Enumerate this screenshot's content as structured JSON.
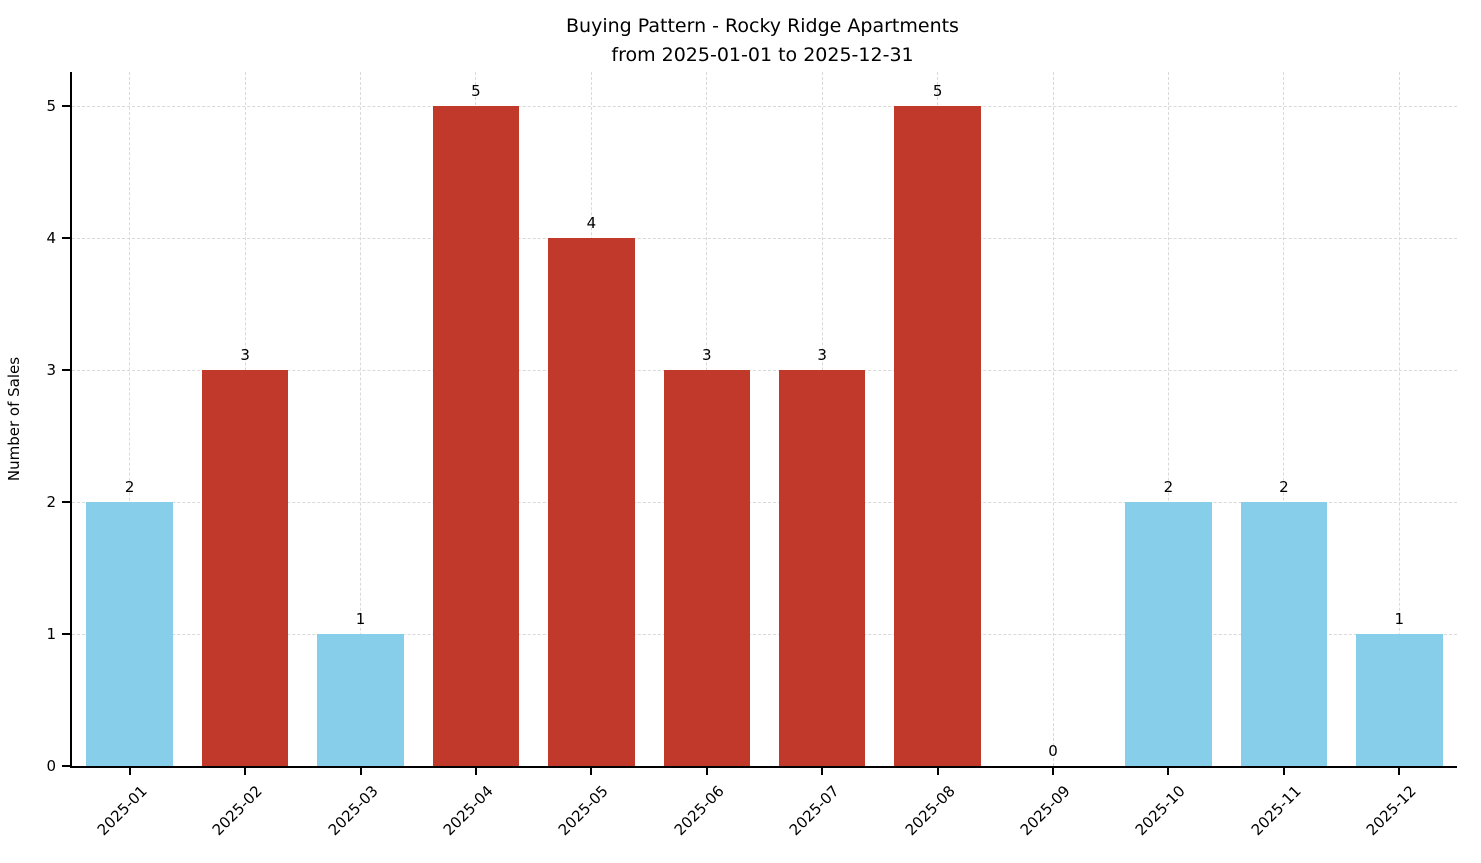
{
  "title_line1": "Buying Pattern - Rocky Ridge Apartments",
  "title_line2": "from 2025-01-01 to 2025-12-31",
  "chart_data": {
    "type": "bar",
    "title": "Buying Pattern - Rocky Ridge Apartments from 2025-01-01 to 2025-12-31",
    "xlabel": "",
    "ylabel": "Number of Sales",
    "categories": [
      "2025-01",
      "2025-02",
      "2025-03",
      "2025-04",
      "2025-05",
      "2025-06",
      "2025-07",
      "2025-08",
      "2025-09",
      "2025-10",
      "2025-11",
      "2025-12"
    ],
    "values": [
      2,
      3,
      1,
      5,
      4,
      3,
      3,
      5,
      0,
      2,
      2,
      1
    ],
    "bar_colors": [
      "#87CEEB",
      "#C0392B",
      "#87CEEB",
      "#C0392B",
      "#C0392B",
      "#C0392B",
      "#C0392B",
      "#C0392B",
      "#87CEEB",
      "#87CEEB",
      "#87CEEB",
      "#87CEEB"
    ],
    "value_labels": [
      2,
      3,
      1,
      5,
      4,
      3,
      3,
      5,
      0,
      2,
      2,
      1
    ],
    "yticks": [
      0,
      1,
      2,
      3,
      4,
      5
    ],
    "ylim": [
      0,
      5.26
    ],
    "grid": "dashed",
    "legend": "none",
    "colors": {
      "low_color": "#87CEEB",
      "high_color": "#C0392B",
      "grid_color": "#d9d9d9",
      "axis_color": "#000000",
      "background": "#ffffff"
    }
  }
}
